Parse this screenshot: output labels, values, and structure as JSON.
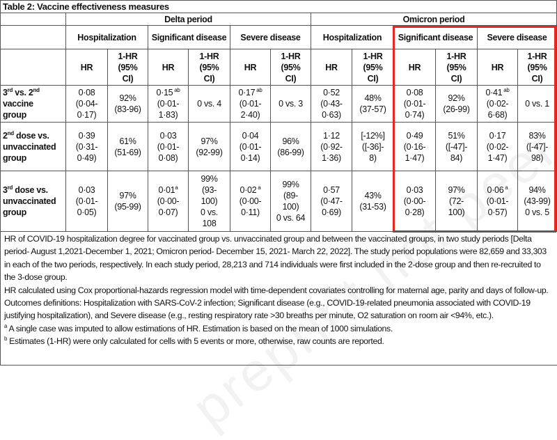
{
  "title": "Table 2: Vaccine effectiveness measures",
  "periods": [
    "Delta period",
    "Omicron period"
  ],
  "outcomes": [
    "Hospitalization",
    "Significant disease",
    "Severe disease",
    "Hospitalization",
    "Significant disease",
    "Severe disease"
  ],
  "subheaders": {
    "hr": "HR",
    "ci": "1-HR\n(95%\nCI)"
  },
  "rows": [
    {
      "label": {
        "a": "3",
        "a_sup": "rd",
        "b": " vs. 2",
        "b_sup": "nd",
        "c": "\nvaccine\ngroup"
      },
      "cells": [
        {
          "v": "0·08",
          "sup": "",
          "r": "\n(0·04-\n0·17)"
        },
        {
          "v": "92%\n(83-96)",
          "sup": "",
          "r": ""
        },
        {
          "v": "0·15",
          "sup": " ab",
          "r": "\n(0·01-\n1·83)"
        },
        {
          "v": "0 vs. 4",
          "sup": "",
          "r": ""
        },
        {
          "v": "0·17",
          "sup": " ab",
          "r": "\n(0·01-\n2·40)"
        },
        {
          "v": "0 vs. 3",
          "sup": "",
          "r": ""
        },
        {
          "v": "0·52",
          "sup": "",
          "r": "\n(0·43-\n0·63)"
        },
        {
          "v": "48%\n(37-57)",
          "sup": "",
          "r": ""
        },
        {
          "v": "0·08",
          "sup": "",
          "r": "\n(0·01-\n0·74)"
        },
        {
          "v": "92%\n(26-99)",
          "sup": "",
          "r": ""
        },
        {
          "v": "0·41",
          "sup": " ab",
          "r": "\n(0·02-\n6·68)"
        },
        {
          "v": "0 vs. 1",
          "sup": "",
          "r": ""
        }
      ]
    },
    {
      "label": {
        "a": "2",
        "a_sup": "nd",
        "b": " dose vs.\nunvaccinated\ngroup",
        "b_sup": "",
        "c": ""
      },
      "cells": [
        {
          "v": "0·39",
          "sup": "",
          "r": "\n(0·31-\n0·49)"
        },
        {
          "v": "61%\n(51-69)",
          "sup": "",
          "r": ""
        },
        {
          "v": "0·03",
          "sup": "",
          "r": "\n(0·01-\n0·08)"
        },
        {
          "v": "97%\n(92-99)",
          "sup": "",
          "r": ""
        },
        {
          "v": "0·04",
          "sup": "",
          "r": "\n(0·01-\n0·14)"
        },
        {
          "v": "96%\n(86-99)",
          "sup": "",
          "r": ""
        },
        {
          "v": "1·12",
          "sup": "",
          "r": "\n(0·92-\n1·36)"
        },
        {
          "v": "[-12%]\n([-36]-\n8)",
          "sup": "",
          "r": ""
        },
        {
          "v": "0·49",
          "sup": "",
          "r": "\n(0·16-\n1·47)"
        },
        {
          "v": "51%\n([-47]-\n84)",
          "sup": "",
          "r": ""
        },
        {
          "v": "0·17",
          "sup": "",
          "r": "\n(0·02-\n1·47)"
        },
        {
          "v": "83%\n([-47]-\n98)",
          "sup": "",
          "r": ""
        }
      ]
    },
    {
      "label": {
        "a": "3",
        "a_sup": "rd",
        "b": " dose vs.\nunvaccinated\ngroup",
        "b_sup": "",
        "c": ""
      },
      "cells": [
        {
          "v": "0·03",
          "sup": "",
          "r": "\n(0·01-\n0·05)"
        },
        {
          "v": "97%\n(95-99)",
          "sup": "",
          "r": ""
        },
        {
          "v": "0·01",
          "sup": "a",
          "r": "\n(0·00-\n0·07)"
        },
        {
          "v": "99%\n(93-\n100)\n0 vs.\n108",
          "sup": "",
          "r": ""
        },
        {
          "v": "0·02",
          "sup": " a",
          "r": "\n(0·00-\n0·11)"
        },
        {
          "v": "99%\n(89-\n100)\n0 vs. 64",
          "sup": "",
          "r": ""
        },
        {
          "v": "0·57",
          "sup": "",
          "r": "\n(0·47-\n0·69)"
        },
        {
          "v": "43%\n(31-53)",
          "sup": "",
          "r": ""
        },
        {
          "v": "0·03",
          "sup": "",
          "r": "\n(0·00-\n0·28)"
        },
        {
          "v": "97%\n(72-\n100)",
          "sup": "",
          "r": ""
        },
        {
          "v": "0·06",
          "sup": " a",
          "r": "\n(0·01-\n0·57)"
        },
        {
          "v": "94%\n(43-99)\n0 vs. 5",
          "sup": "",
          "r": ""
        }
      ]
    }
  ],
  "notes": {
    "p1": "HR of COVID-19 hospitalization degree for vaccinated group vs. unvaccinated group and between the vaccinated groups, in two study periods [Delta period- August 1,2021-December 1, 2021; Omicron period- December 15, 2021- March 22, 2022]. The study period populations were 82,659 and 33,303 in each of the two periods, respectively. In each study period, 28,213 and 714 individuals were first included in the 2-dose group and then re-recruited to the 3-dose group.",
    "p2": "HR calculated using Cox proportional-hazards regression model with time-dependent covariates controlling for maternal age, parity and days of follow-up.",
    "p3": "Outcomes definitions: Hospitalization with SARS-CoV-2 infection; Significant disease (e.g., COVID-19-related pneumonia associated with COVID-19 justifying hospitalization), and Severe disease (e.g., resting respiratory rate >30 breaths per minute, O2 saturation on room air <94%, etc.).",
    "fa_mark": "a",
    "fa": " A single case was imputed to allow estimations of HR. Estimation is based on the mean of 1000 simulations.",
    "fb_mark": "b",
    "fb": " Estimates (1-HR) were only calculated for cells with 5 events or more, otherwise, raw counts are reported."
  },
  "watermark": "preprint not peer reviewed",
  "colors": {
    "highlight": "#e8281e",
    "border": "#555555"
  }
}
